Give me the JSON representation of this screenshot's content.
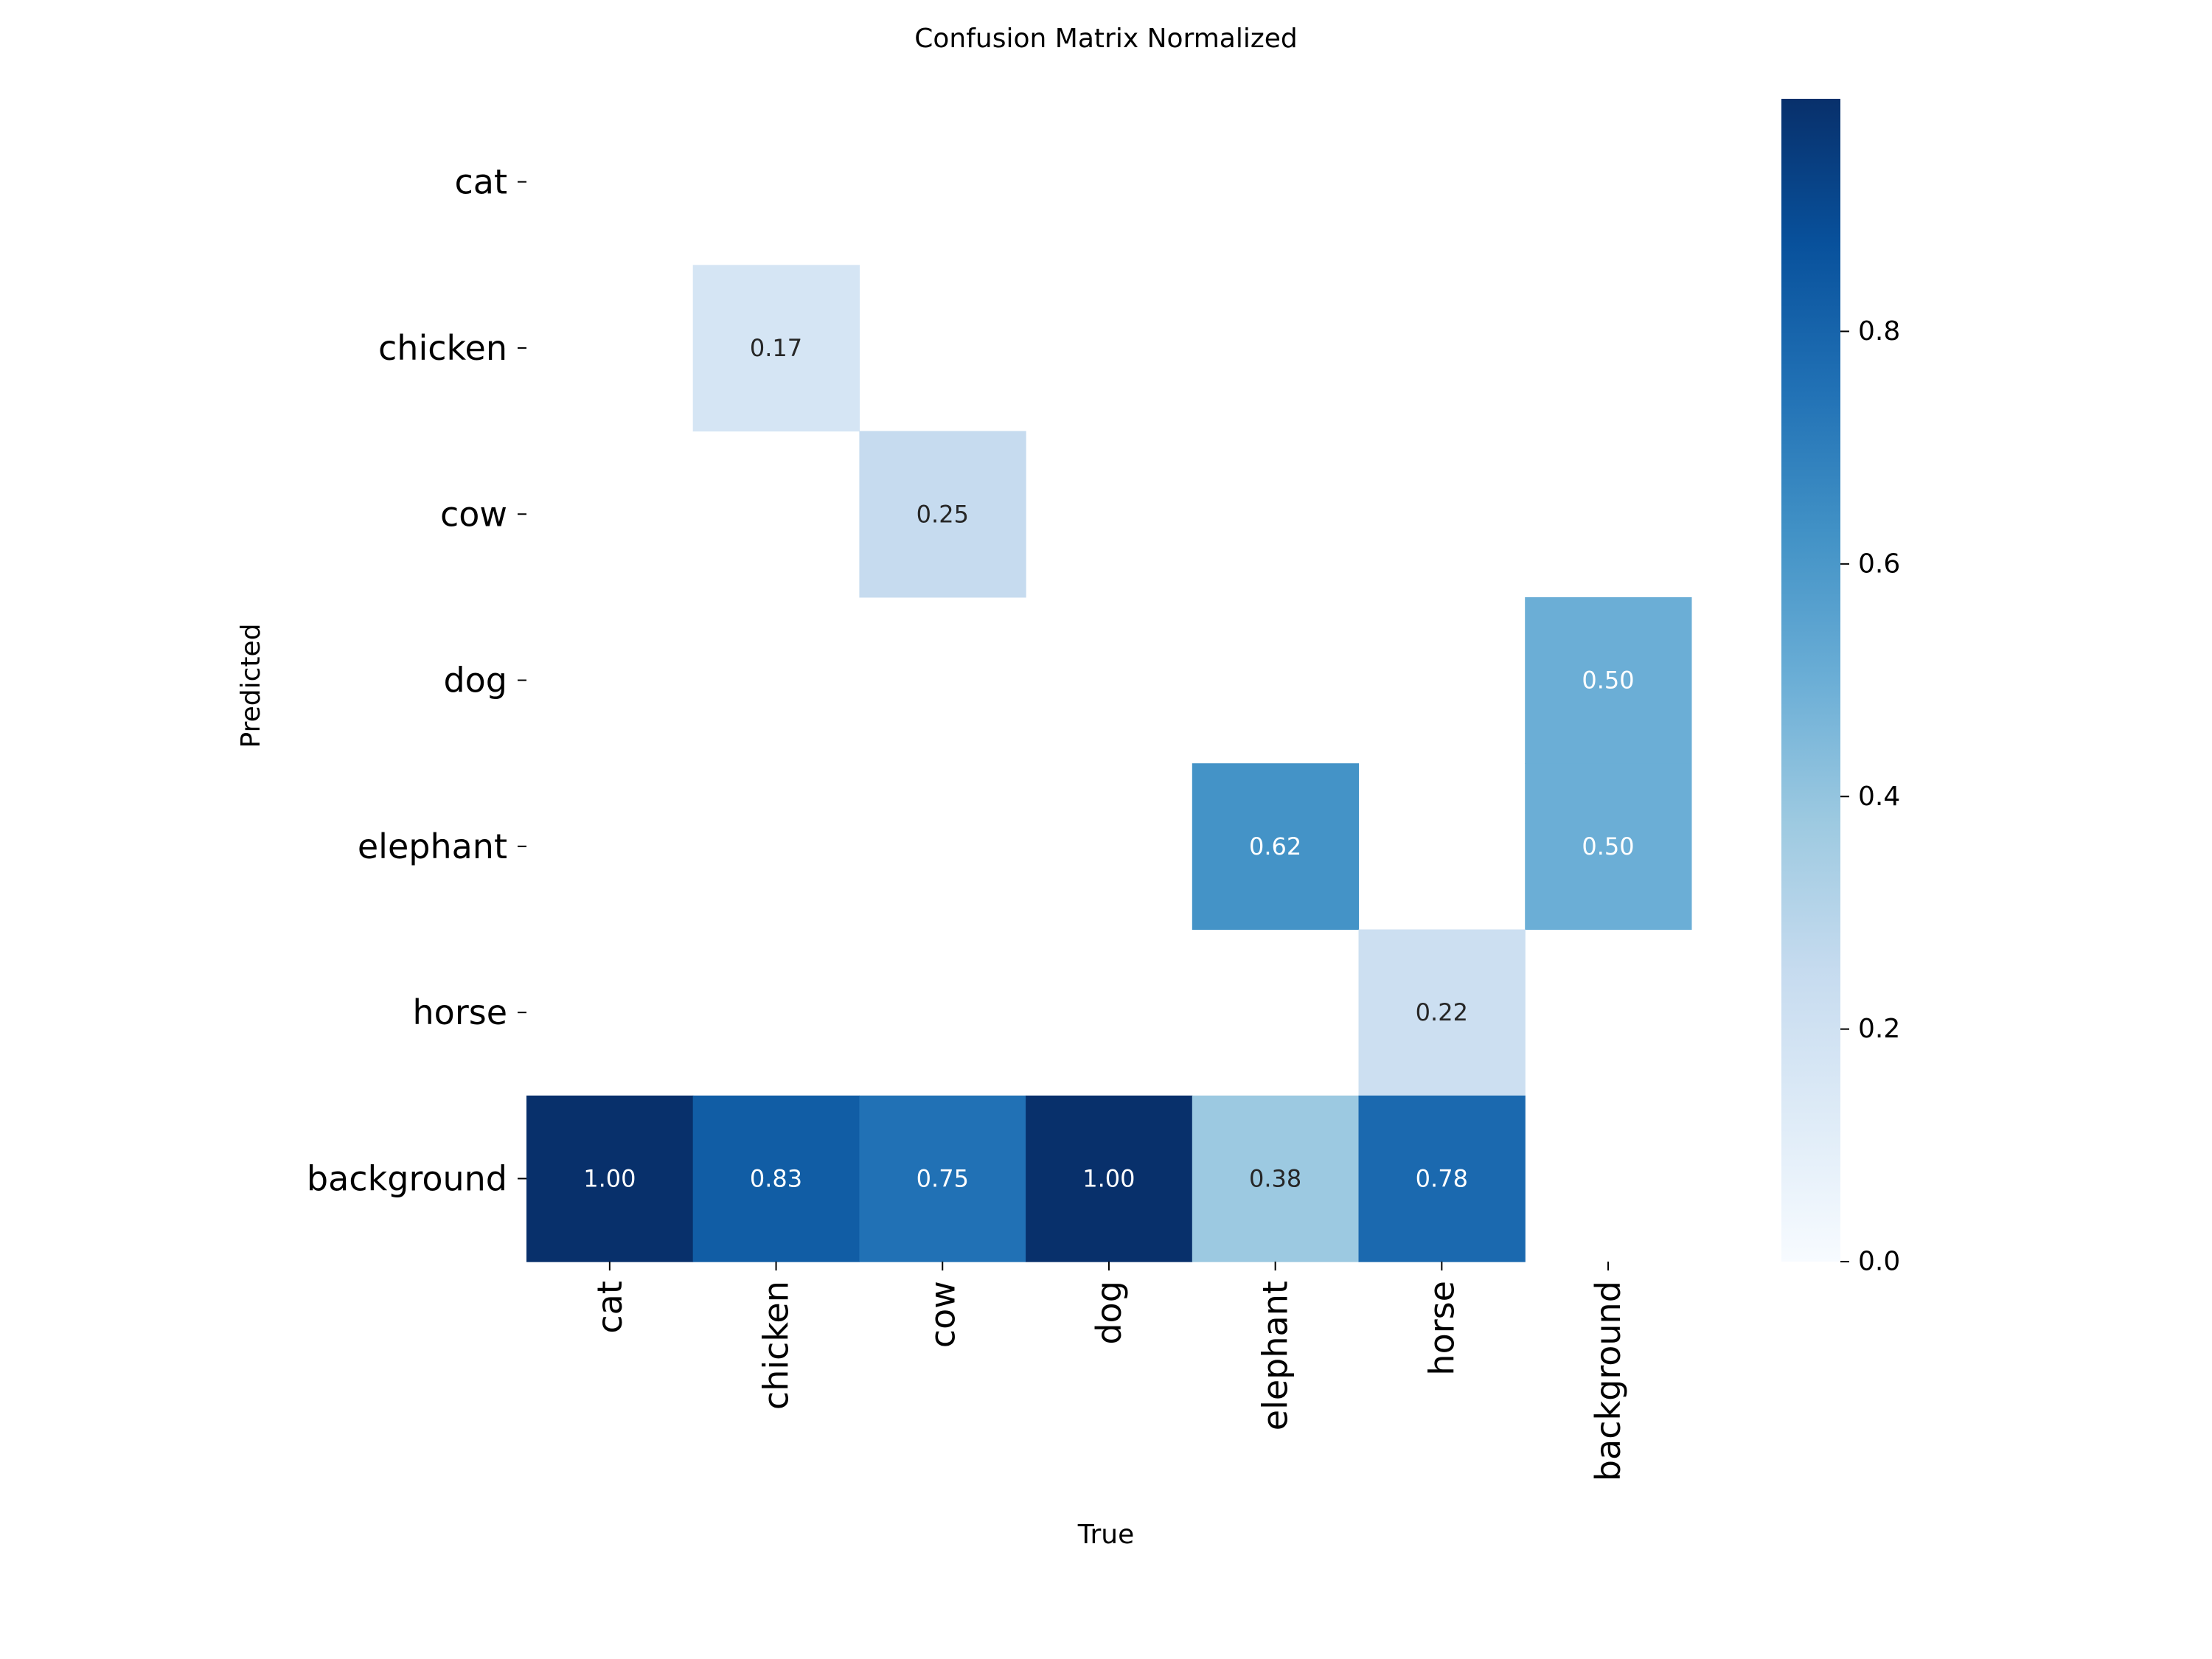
{
  "chart_data": {
    "type": "heatmap",
    "title": "Confusion Matrix Normalized",
    "xlabel": "True",
    "ylabel": "Predicted",
    "x_categories": [
      "cat",
      "chicken",
      "cow",
      "dog",
      "elephant",
      "horse",
      "background"
    ],
    "y_categories": [
      "cat",
      "chicken",
      "cow",
      "dog",
      "elephant",
      "horse",
      "background"
    ],
    "values": [
      [
        null,
        null,
        null,
        null,
        null,
        null,
        null
      ],
      [
        null,
        0.17,
        null,
        null,
        null,
        null,
        null
      ],
      [
        null,
        null,
        0.25,
        null,
        null,
        null,
        null
      ],
      [
        null,
        null,
        null,
        null,
        null,
        null,
        0.5
      ],
      [
        null,
        null,
        null,
        null,
        0.62,
        null,
        0.5
      ],
      [
        null,
        null,
        null,
        null,
        null,
        0.22,
        null
      ],
      [
        1.0,
        0.83,
        0.75,
        1.0,
        0.38,
        0.78,
        null
      ]
    ],
    "value_format": "0.00",
    "colorscale": "Blues",
    "colorbar": {
      "range": [
        0.0,
        1.0
      ],
      "ticks": [
        0.0,
        0.2,
        0.4,
        0.6,
        0.8
      ],
      "tick_labels": [
        "0.0",
        "0.2",
        "0.4",
        "0.6",
        "0.8"
      ]
    },
    "grid": false,
    "legend": "colorbar-right"
  }
}
